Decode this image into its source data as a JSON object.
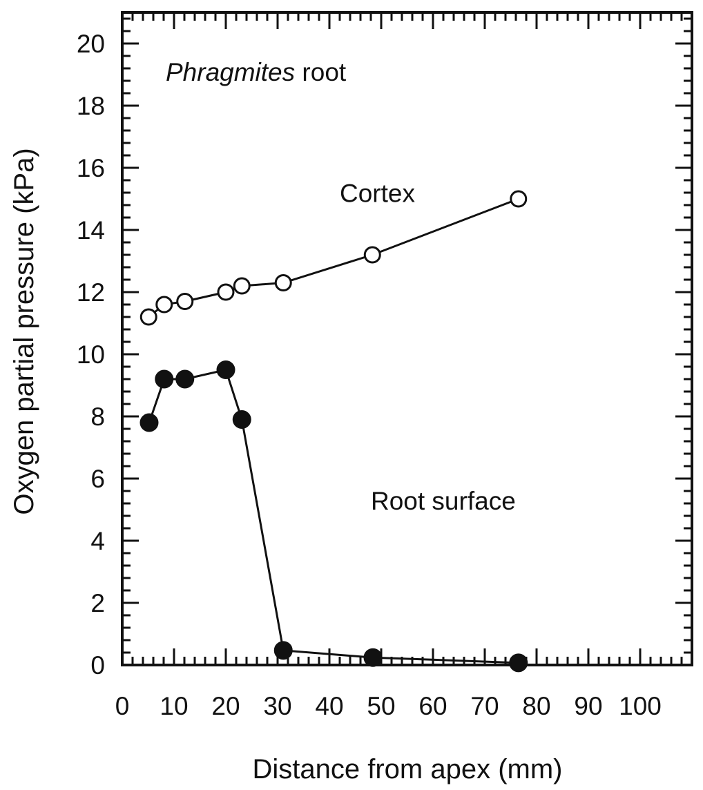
{
  "chart_data": {
    "type": "line",
    "title": {
      "italic": "Phragmites",
      "rest": " root"
    },
    "xlabel": "Distance from apex (mm)",
    "ylabel": "Oxygen partial pressure (kPa)",
    "xlim": [
      0,
      110
    ],
    "ylim": [
      0,
      21
    ],
    "x_ticks": [
      0,
      10,
      20,
      30,
      40,
      50,
      60,
      70,
      80,
      90,
      100
    ],
    "x_tick_labels": [
      "0",
      "10",
      "20",
      "30",
      "40",
      "50",
      "60",
      "70",
      "80",
      "90",
      "100"
    ],
    "x_minor_step": 2,
    "y_ticks": [
      0,
      2,
      4,
      6,
      8,
      10,
      12,
      14,
      16,
      18,
      20
    ],
    "y_tick_labels": [
      "0",
      "2",
      "4",
      "6",
      "8",
      "10",
      "12",
      "14",
      "16",
      "18",
      "20"
    ],
    "y_minor_step": 0.4,
    "grid": false,
    "series": [
      {
        "name": "Cortex",
        "marker": "open-circle",
        "color": "#111111",
        "x": [
          5.1,
          8.1,
          12.1,
          20.0,
          23.1,
          31.1,
          48.3,
          76.5
        ],
        "y": [
          11.2,
          11.6,
          11.7,
          12.0,
          12.2,
          12.3,
          13.2,
          15.0
        ]
      },
      {
        "name": "Root surface",
        "marker": "filled-circle",
        "color": "#111111",
        "x": [
          5.2,
          8.1,
          12.1,
          20.0,
          23.1,
          31.1,
          48.4,
          76.5
        ],
        "y": [
          7.8,
          9.2,
          9.2,
          9.5,
          7.9,
          0.47,
          0.24,
          0.07
        ]
      }
    ],
    "annotations": [
      {
        "text": "Cortex",
        "series": "Cortex",
        "x": 42,
        "y": 14.9
      },
      {
        "text": "Root surface",
        "series": "Root surface",
        "x": 48,
        "y": 5.0
      }
    ]
  }
}
